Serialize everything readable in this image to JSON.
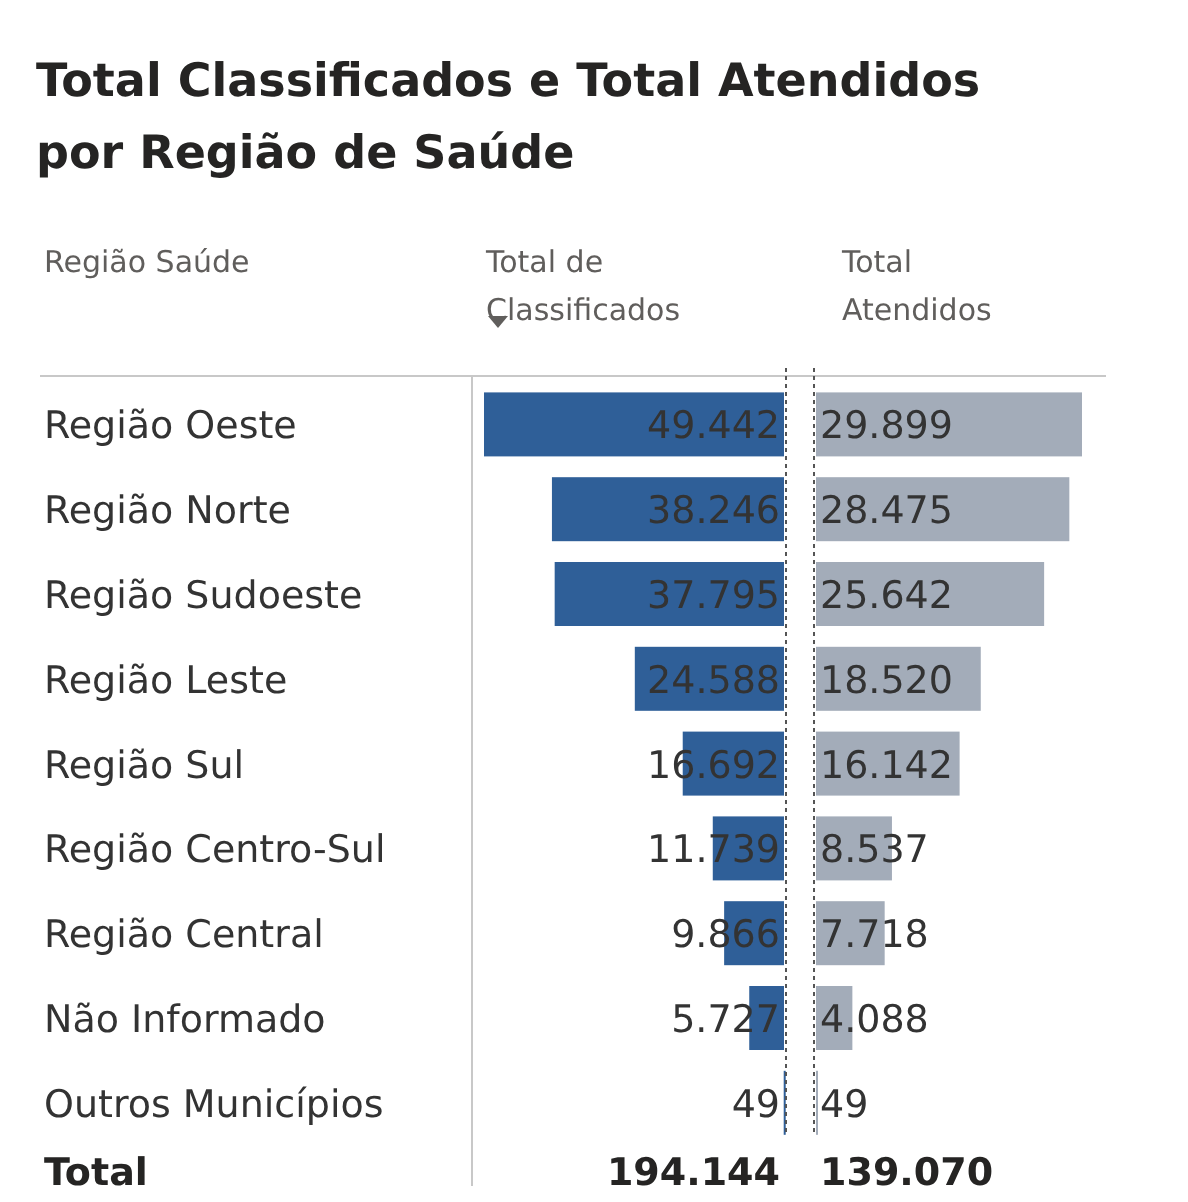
{
  "chart_data": [
    {
      "type": "bar",
      "orientation": "horizontal",
      "title": "Total Classificados e Total Atendidos por Região de Saúde",
      "ylabel": "Região Saúde",
      "xlim": [
        49442,
        0
      ],
      "categories": [
        "Região Oeste",
        "Região Norte",
        "Região Sudoeste",
        "Região Leste",
        "Região Sul",
        "Região Centro-Sul",
        "Região Central",
        "Não Informado",
        "Outros Municípios"
      ],
      "series": [
        {
          "name": "Total de Classificados",
          "color": "#2f5f98",
          "values": [
            49442,
            38246,
            37795,
            24588,
            16692,
            11739,
            9866,
            5727,
            49
          ],
          "value_labels": [
            "49.442",
            "38.246",
            "37.795",
            "24.588",
            "16.692",
            "11.739",
            "9.866",
            "5.727",
            "49"
          ]
        }
      ],
      "annotations": [
        "Total",
        "194.144"
      ]
    },
    {
      "type": "bar",
      "orientation": "horizontal",
      "xlim": [
        0,
        29899
      ],
      "categories": [
        null,
        null,
        null,
        null,
        null,
        null,
        null,
        null,
        null
      ],
      "series": [
        {
          "name": "Total Atendidos",
          "color": "#a3acb9",
          "values": [
            29899,
            28475,
            25642,
            18520,
            16142,
            8537,
            7718,
            4088,
            49
          ],
          "value_labels": [
            "29.899",
            "28.475",
            "25.642",
            "18.520",
            "16.142",
            "8.537",
            "7.718",
            "4.088",
            "49"
          ]
        }
      ],
      "annotations": [
        "139.070"
      ]
    }
  ]
}
